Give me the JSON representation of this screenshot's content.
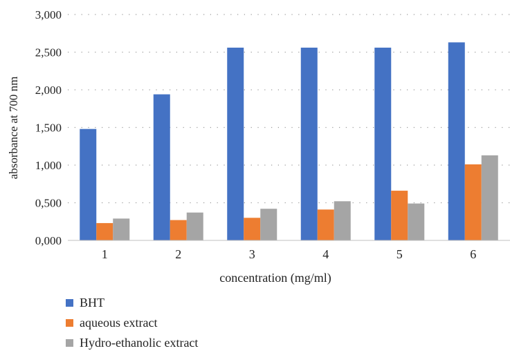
{
  "chart_data": {
    "type": "bar",
    "categories": [
      "1",
      "2",
      "3",
      "4",
      "5",
      "6"
    ],
    "series": [
      {
        "name": "BHT",
        "color": "#4472c4",
        "values": [
          1.48,
          1.94,
          2.56,
          2.56,
          2.56,
          2.63
        ]
      },
      {
        "name": "aqueous extract",
        "color": "#ed7d31",
        "values": [
          0.23,
          0.27,
          0.3,
          0.41,
          0.66,
          1.01
        ]
      },
      {
        "name": "Hydro-ethanolic extract",
        "color": "#a5a5a5",
        "values": [
          0.29,
          0.37,
          0.42,
          0.52,
          0.49,
          1.13
        ]
      }
    ],
    "xlabel": "concentration (mg/ml)",
    "ylabel": "absorbance at 700 nm",
    "ylim": [
      0,
      3
    ],
    "yticks": [
      "0,000",
      "0,500",
      "1,000",
      "1,500",
      "2,000",
      "2,500",
      "3,000"
    ],
    "grid": "dotted horizontal",
    "legend_position": "bottom-left"
  }
}
